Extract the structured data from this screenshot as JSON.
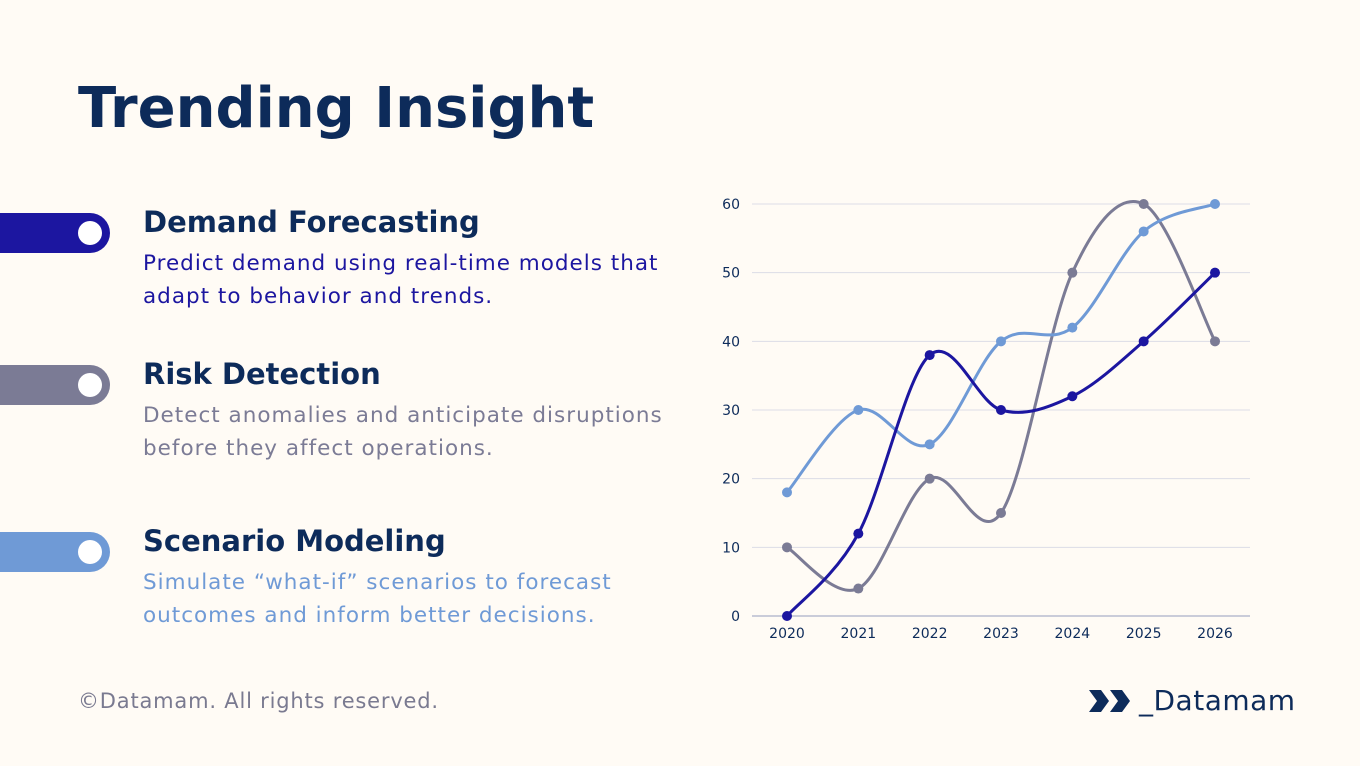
{
  "title": "Trending Insight",
  "items": [
    {
      "heading": "Demand Forecasting",
      "text": "Predict demand using real-time models that adapt to behavior and trends.",
      "color": "#1c16a0"
    },
    {
      "heading": "Risk Detection",
      "text": "Detect anomalies and anticipate disruptions before they affect operations.",
      "color": "#7b7b95"
    },
    {
      "heading": "Scenario Modeling",
      "text": "Simulate “what-if” scenarios to forecast outcomes and inform better decisions.",
      "color": "#6f9ad6"
    }
  ],
  "footer": "©Datamam. All rights reserved.",
  "logo": {
    "text": "_Datamam",
    "icon": "double-chevron-icon",
    "color": "#0d2b5a"
  },
  "chart_data": {
    "type": "line",
    "smooth": true,
    "categories": [
      "2020",
      "2021",
      "2022",
      "2023",
      "2024",
      "2025",
      "2026"
    ],
    "ylim": [
      0,
      60
    ],
    "yticks": [
      0,
      10,
      20,
      30,
      40,
      50,
      60
    ],
    "grid": true,
    "legend": "none",
    "series": [
      {
        "color": "#1c16a0",
        "values": [
          0,
          12,
          38,
          30,
          32,
          40,
          50
        ]
      },
      {
        "color": "#6f9ad6",
        "values": [
          18,
          30,
          25,
          40,
          42,
          56,
          60
        ]
      },
      {
        "color": "#7b7b95",
        "values": [
          10,
          4,
          20,
          15,
          50,
          60,
          40
        ]
      }
    ]
  }
}
